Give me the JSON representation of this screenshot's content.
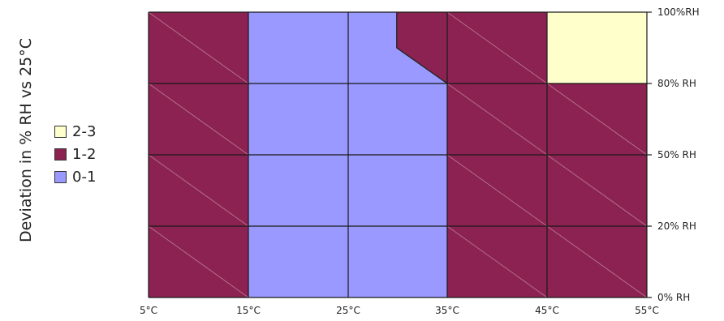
{
  "chart_data": {
    "type": "heatmap",
    "ylabel": "Deviation in % RH vs 25°C",
    "x_ticks": [
      "5°C",
      "15°C",
      "25°C",
      "35°C",
      "45°C",
      "55°C"
    ],
    "y_ticks": [
      "0% RH",
      "20% RH",
      "50% RH",
      "80% RH",
      "100%RH"
    ],
    "legend": [
      {
        "label": "2-3",
        "color": "#ffffcc"
      },
      {
        "label": "1-2",
        "color": "#8b2252"
      },
      {
        "label": "0-1",
        "color": "#9999ff"
      }
    ],
    "colors": {
      "0-1": "#9999ff",
      "1-2": "#8b2252",
      "2-3": "#ffffcc"
    },
    "rows_top_to_bottom": [
      [
        "1-2",
        "0-1",
        "0-1/1-2",
        "1-2",
        "2-3"
      ],
      [
        "1-2",
        "0-1",
        "0-1",
        "1-2",
        "1-2"
      ],
      [
        "1-2",
        "0-1",
        "0-1",
        "1-2",
        "1-2"
      ],
      [
        "1-2",
        "0-1",
        "0-1",
        "1-2",
        "1-2"
      ]
    ]
  }
}
